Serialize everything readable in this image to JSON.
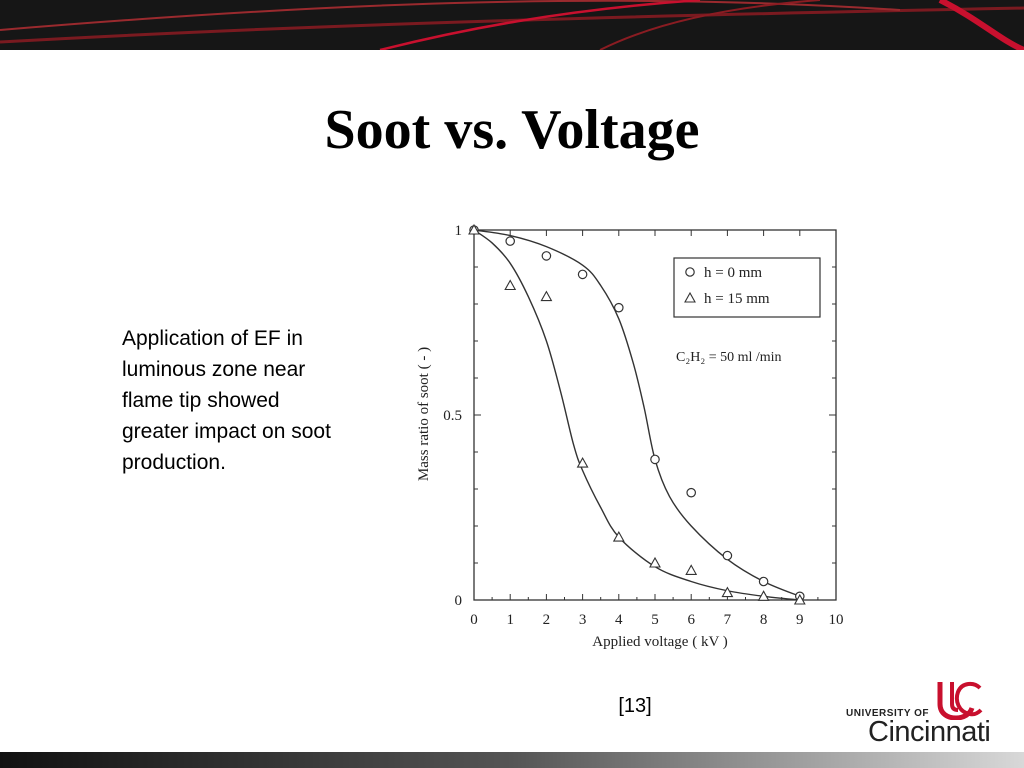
{
  "slide": {
    "title": "Soot vs. Voltage",
    "body_text": "Application of EF in luminous zone near flame tip showed greater impact on soot production.",
    "citation": "[13]"
  },
  "logo": {
    "small_text": "UNIVERSITY OF",
    "big_text": "Cincinnati",
    "colors": {
      "mark": "#c8102e",
      "text": "#222222"
    }
  },
  "theme": {
    "banner": "#1a1a1a",
    "accent": "#c8102e"
  },
  "chart_data": {
    "type": "scatter",
    "title": "",
    "xlabel": "Applied voltage ( kV )",
    "ylabel": "Mass ratio of soot ( - )",
    "xlim": [
      0,
      10
    ],
    "ylim": [
      0,
      1
    ],
    "x_ticks": [
      "0",
      "1",
      "2",
      "3",
      "4",
      "5",
      "6",
      "7",
      "8",
      "9",
      "10"
    ],
    "y_ticks": [
      {
        "value": 0,
        "label": "0"
      },
      {
        "value": 0.5,
        "label": "0.5"
      },
      {
        "value": 1,
        "label": "1"
      }
    ],
    "annotation": "C₂H₂ = 50 ml /min",
    "legend_position": "top-right",
    "grid": false,
    "series": [
      {
        "name": "h = 0 mm",
        "marker": "circle",
        "x": [
          0,
          1,
          2,
          3,
          4,
          5,
          6,
          7,
          8,
          9
        ],
        "y": [
          1.0,
          0.97,
          0.93,
          0.88,
          0.79,
          0.38,
          0.29,
          0.12,
          0.05,
          0.01
        ],
        "curve": [
          [
            0,
            1.0
          ],
          [
            1,
            0.985
          ],
          [
            2,
            0.955
          ],
          [
            3,
            0.905
          ],
          [
            3.5,
            0.85
          ],
          [
            4,
            0.76
          ],
          [
            4.4,
            0.64
          ],
          [
            4.7,
            0.52
          ],
          [
            5,
            0.38
          ],
          [
            5.4,
            0.28
          ],
          [
            6,
            0.2
          ],
          [
            7,
            0.11
          ],
          [
            8,
            0.05
          ],
          [
            9,
            0.01
          ]
        ]
      },
      {
        "name": "h = 15 mm",
        "marker": "triangle",
        "x": [
          0,
          1,
          2,
          3,
          4,
          5,
          6,
          7,
          8,
          9
        ],
        "y": [
          1.0,
          0.85,
          0.82,
          0.37,
          0.17,
          0.1,
          0.08,
          0.02,
          0.01,
          0.0
        ],
        "curve": [
          [
            0,
            1.0
          ],
          [
            0.5,
            0.965
          ],
          [
            1,
            0.91
          ],
          [
            1.5,
            0.82
          ],
          [
            2,
            0.7
          ],
          [
            2.4,
            0.56
          ],
          [
            2.75,
            0.42
          ],
          [
            3,
            0.35
          ],
          [
            3.5,
            0.25
          ],
          [
            4,
            0.17
          ],
          [
            5,
            0.09
          ],
          [
            6,
            0.05
          ],
          [
            7,
            0.025
          ],
          [
            8,
            0.01
          ],
          [
            9,
            0.0
          ]
        ]
      }
    ]
  }
}
